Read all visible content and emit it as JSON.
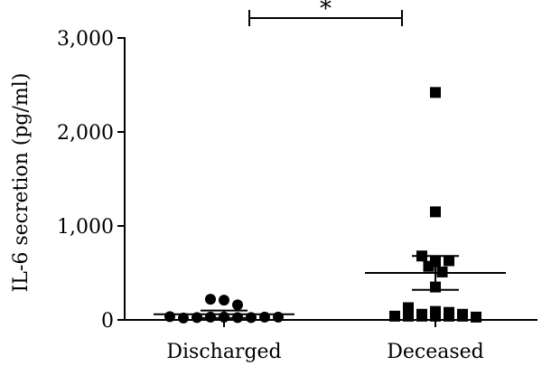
{
  "chart_data": {
    "type": "scatter",
    "ylabel": "IL-6 secretion (pg/ml)",
    "ylim": [
      0,
      3000
    ],
    "yticks": [
      0,
      1000,
      2000,
      3000
    ],
    "ytick_labels": [
      "0",
      "1,000",
      "2,000",
      "3,000"
    ],
    "categories": [
      "Discharged",
      "Deceased"
    ],
    "colors": {
      "points": "#000000",
      "lines": "#000000"
    },
    "groups": [
      {
        "name": "Discharged",
        "marker": "circle",
        "values": [
          35,
          20,
          25,
          220,
          210,
          30,
          30,
          160,
          25,
          25,
          30,
          30
        ],
        "mean": 60,
        "error": [
          20,
          100
        ]
      },
      {
        "name": "Deceased",
        "marker": "square",
        "values": [
          2420,
          1150,
          680,
          620,
          630,
          570,
          510,
          350,
          130,
          60,
          90,
          40,
          40,
          40,
          40,
          40,
          40,
          80,
          60,
          30
        ],
        "mean": 500,
        "error": [
          320,
          680
        ]
      }
    ],
    "significance": {
      "label": "*",
      "between": [
        "Discharged",
        "Deceased"
      ]
    }
  }
}
